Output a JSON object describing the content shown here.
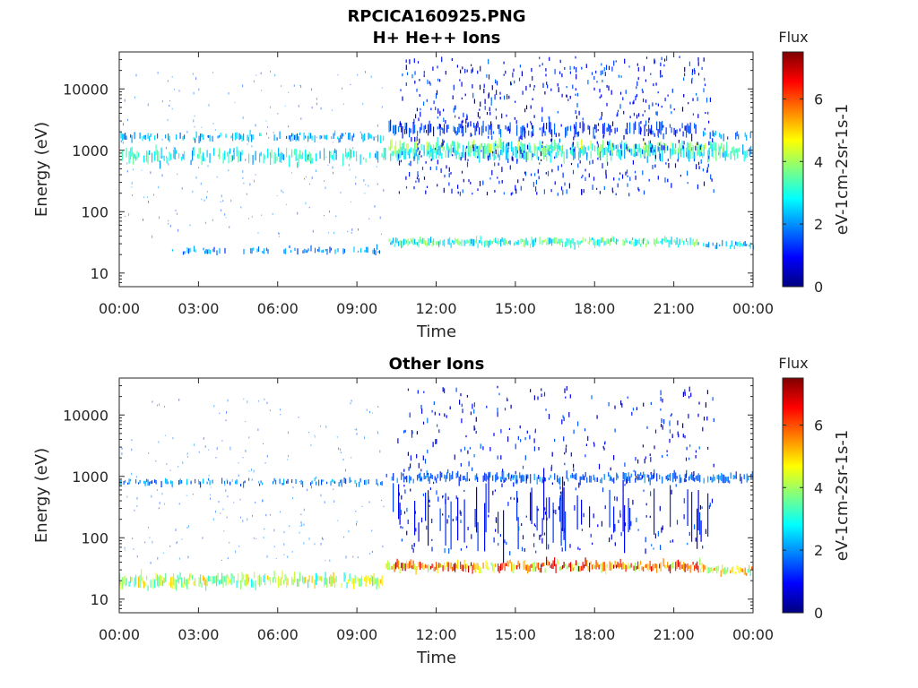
{
  "figure": {
    "file_title": "RPCICA160925.PNG"
  },
  "colormap_stops": [
    "#00007f",
    "#0000ff",
    "#0080ff",
    "#00ffff",
    "#80ff80",
    "#ffff00",
    "#ff8000",
    "#ff0000",
    "#7f0000"
  ],
  "chart_data": [
    {
      "type": "heatmap",
      "title": "H+ He++ Ions",
      "xlabel": "Time",
      "ylabel": "Energy (eV)",
      "x_ticks": [
        "00:00",
        "03:00",
        "06:00",
        "09:00",
        "12:00",
        "15:00",
        "18:00",
        "21:00",
        "00:00"
      ],
      "xlim_hours": [
        0,
        24
      ],
      "y_scale": "log",
      "y_ticks": [
        {
          "value": 10,
          "label": "10"
        },
        {
          "value": 100,
          "label": "100"
        },
        {
          "value": 1000,
          "label": "1000"
        },
        {
          "value": 10000,
          "label": "10000"
        }
      ],
      "ylim": [
        6,
        40000
      ],
      "colorbar": {
        "title": "Flux",
        "label": "eV-1cm-2sr-1s-1",
        "range": [
          0,
          7.5
        ],
        "ticks": [
          0,
          2,
          4,
          6
        ]
      },
      "bands": [
        {
          "t": [
            0,
            10
          ],
          "energy": 1650,
          "width": 0.05,
          "flux": 2.3,
          "density": 0.5
        },
        {
          "t": [
            0,
            10
          ],
          "energy": 800,
          "width": 0.08,
          "flux": 3.0,
          "density": 0.6
        },
        {
          "t": [
            2,
            10
          ],
          "energy": 23,
          "width": 0.04,
          "flux": 2.0,
          "density": 0.35
        },
        {
          "t": [
            10,
            24
          ],
          "energy": 900,
          "width": 0.08,
          "flux": 3.0,
          "density": 0.7
        },
        {
          "t": [
            10.2,
            23
          ],
          "energy": 1100,
          "width": 0.07,
          "flux": 3.6,
          "density": 0.7
        },
        {
          "t": [
            10.2,
            22
          ],
          "energy": 2200,
          "width": 0.08,
          "flux": 1.5,
          "density": 0.45
        },
        {
          "t": [
            10.2,
            22
          ],
          "energy": 32,
          "width": 0.05,
          "flux": 3.3,
          "density": 0.85
        },
        {
          "t": [
            22,
            24
          ],
          "energy": 28,
          "width": 0.04,
          "flux": 2.6,
          "density": 0.6
        },
        {
          "t": [
            22,
            24
          ],
          "energy": 1700,
          "width": 0.05,
          "flux": 2.0,
          "density": 0.4
        }
      ],
      "scatter": {
        "t": [
          10.5,
          22.5
        ],
        "energy": [
          200,
          35000
        ],
        "flux": 1.0,
        "count": 650
      }
    },
    {
      "type": "heatmap",
      "title": "Other Ions",
      "xlabel": "Time",
      "ylabel": "Energy (eV)",
      "x_ticks": [
        "00:00",
        "03:00",
        "06:00",
        "09:00",
        "12:00",
        "15:00",
        "18:00",
        "21:00",
        "00:00"
      ],
      "xlim_hours": [
        0,
        24
      ],
      "y_scale": "log",
      "y_ticks": [
        {
          "value": 10,
          "label": "10"
        },
        {
          "value": 100,
          "label": "100"
        },
        {
          "value": 1000,
          "label": "1000"
        },
        {
          "value": 10000,
          "label": "10000"
        }
      ],
      "ylim": [
        6,
        40000
      ],
      "colorbar": {
        "title": "Flux",
        "label": "eV-1cm-2sr-1s-1",
        "range": [
          0,
          7.5
        ],
        "ticks": [
          0,
          2,
          4,
          6
        ]
      },
      "bands": [
        {
          "t": [
            0,
            10
          ],
          "energy": 800,
          "width": 0.04,
          "flux": 2.0,
          "density": 0.5
        },
        {
          "t": [
            0,
            10
          ],
          "energy": 20,
          "width": 0.08,
          "flux": 4.2,
          "density": 0.85
        },
        {
          "t": [
            10,
            24
          ],
          "energy": 950,
          "width": 0.06,
          "flux": 1.8,
          "density": 0.65
        },
        {
          "t": [
            10.1,
            22
          ],
          "energy": 34,
          "width": 0.06,
          "flux": 5.8,
          "density": 0.95
        },
        {
          "t": [
            22,
            24
          ],
          "energy": 30,
          "width": 0.05,
          "flux": 4.8,
          "density": 0.85
        },
        {
          "t": [
            10.2,
            22.5
          ],
          "energy": 200,
          "width": 0.35,
          "flux": 1.2,
          "density": 0.25
        }
      ],
      "scatter": {
        "t": [
          10.5,
          22.5
        ],
        "energy": [
          60,
          30000
        ],
        "flux": 1.0,
        "count": 420
      }
    }
  ]
}
